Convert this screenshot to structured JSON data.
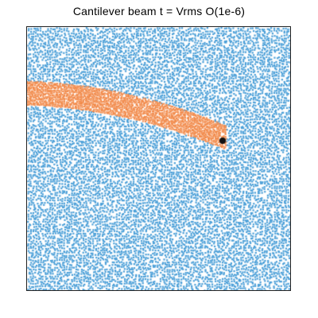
{
  "title": "Cantilever beam t = Vrms O(1e-6)",
  "colors": {
    "fluid_particles": "#4a9fd8",
    "beam_particles": "#f28a4a",
    "tip_marker": "#111111",
    "frame": "#222222",
    "background": "#ffffff"
  },
  "scene": {
    "fluid_label": "fluid particles",
    "beam_label": "beam particles",
    "tip_label": "tip marker"
  }
}
